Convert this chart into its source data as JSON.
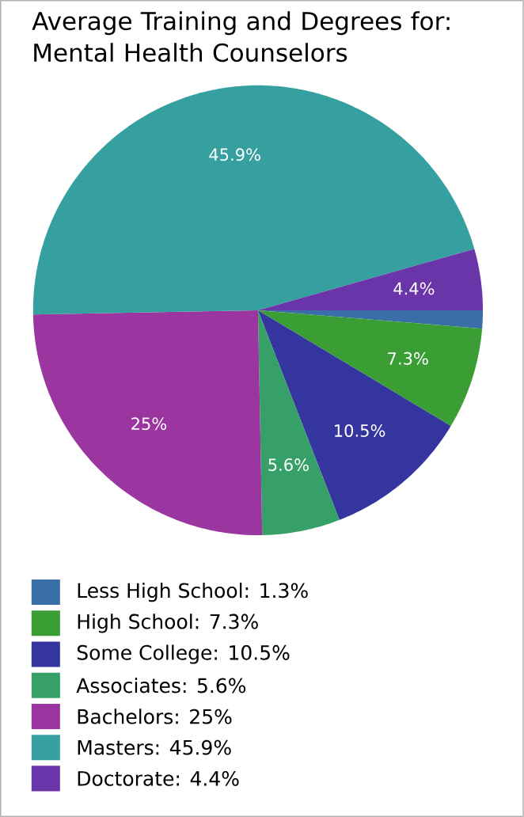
{
  "chart_data": {
    "type": "pie",
    "title": "Average Training and Degrees for: Mental Health Counselors",
    "categories": [
      "Less High School: 1.3%",
      "High School: 7.3%",
      "Some College: 10.5%",
      "Associates: 5.6%",
      "Bachelors: 25%",
      "Masters: 45.9%",
      "Doctorate: 4.4%"
    ],
    "values": [
      1.3,
      7.3,
      10.5,
      5.6,
      25,
      45.9,
      4.4
    ],
    "colors": [
      "#3a6ea8",
      "#3a9e35",
      "#3535a0",
      "#36a068",
      "#9b35a0",
      "#36a0a0",
      "#6a35a8"
    ],
    "value_labels": [
      null,
      "7.3%",
      "10.5%",
      "5.6%",
      "25%",
      "45.9%",
      "4.4%"
    ],
    "legend": "bottom"
  }
}
